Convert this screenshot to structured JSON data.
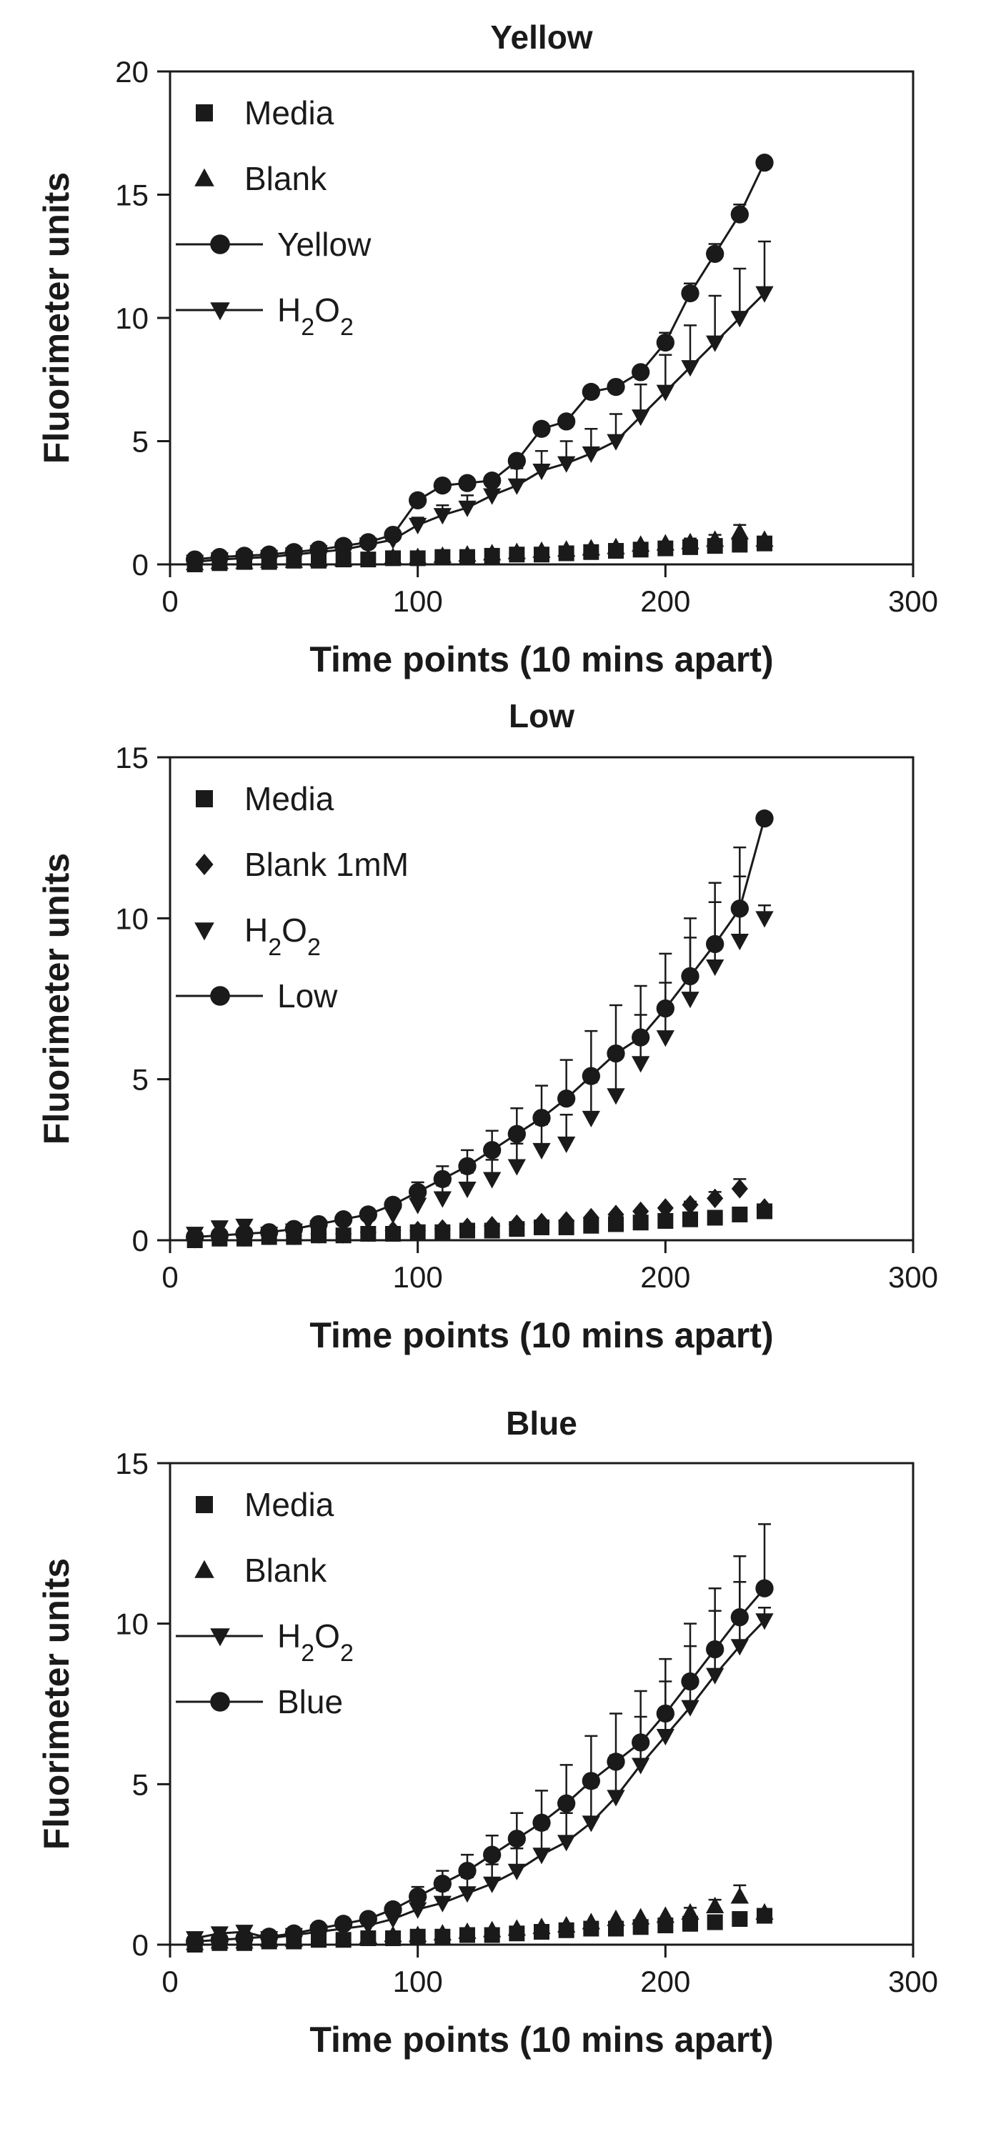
{
  "chart_data": [
    {
      "type": "scatter",
      "title": "Yellow",
      "xlabel": "Time points (10 mins apart)",
      "ylabel": "Fluorimeter units",
      "xlim": [
        0,
        300
      ],
      "ylim": [
        0,
        20
      ],
      "xticks": [
        "0",
        "100",
        "200",
        "300"
      ],
      "yticks": [
        "0",
        "5",
        "10",
        "15",
        "20"
      ],
      "grid": false,
      "legend_position": "top-left",
      "series": [
        {
          "name": "Media",
          "marker": "square",
          "line": false,
          "x": [
            10,
            20,
            30,
            40,
            50,
            60,
            70,
            80,
            90,
            100,
            110,
            120,
            130,
            140,
            150,
            160,
            170,
            180,
            190,
            200,
            210,
            220,
            230,
            240
          ],
          "y": [
            0.0,
            0.05,
            0.1,
            0.1,
            0.15,
            0.15,
            0.2,
            0.2,
            0.25,
            0.25,
            0.3,
            0.3,
            0.35,
            0.4,
            0.4,
            0.45,
            0.5,
            0.55,
            0.6,
            0.65,
            0.7,
            0.75,
            0.8,
            0.85
          ]
        },
        {
          "name": "Blank",
          "marker": "triangle-up",
          "line": false,
          "x": [
            10,
            20,
            30,
            40,
            50,
            60,
            70,
            80,
            90,
            100,
            110,
            120,
            130,
            140,
            150,
            160,
            170,
            180,
            190,
            200,
            210,
            220,
            230,
            240
          ],
          "y": [
            0.05,
            0.1,
            0.1,
            0.15,
            0.15,
            0.2,
            0.2,
            0.25,
            0.3,
            0.3,
            0.35,
            0.4,
            0.45,
            0.5,
            0.55,
            0.6,
            0.65,
            0.7,
            0.8,
            0.85,
            0.9,
            1.0,
            1.3,
            1.0
          ],
          "err": [
            0,
            0,
            0,
            0,
            0,
            0,
            0,
            0,
            0,
            0,
            0,
            0,
            0,
            0,
            0,
            0,
            0,
            0,
            0,
            0,
            0.15,
            0.2,
            0.3,
            0.1
          ]
        },
        {
          "name": "Yellow",
          "marker": "circle",
          "line": true,
          "x": [
            10,
            20,
            30,
            40,
            50,
            60,
            70,
            80,
            90,
            100,
            110,
            120,
            130,
            140,
            150,
            160,
            170,
            180,
            190,
            200,
            210,
            220,
            230,
            240
          ],
          "y": [
            0.2,
            0.3,
            0.35,
            0.4,
            0.5,
            0.6,
            0.75,
            0.9,
            1.2,
            2.6,
            3.2,
            3.3,
            3.4,
            4.2,
            5.5,
            5.8,
            7.0,
            7.2,
            7.8,
            9.0,
            11.0,
            12.6,
            14.2,
            16.3
          ],
          "err": [
            0,
            0,
            0,
            0,
            0,
            0,
            0,
            0,
            0,
            0,
            0,
            0,
            0,
            0,
            0,
            0,
            0,
            0,
            0,
            0.4,
            0.4,
            0.4,
            0.4,
            0
          ]
        },
        {
          "name": "H2O2",
          "label_parts": {
            "base": "H",
            "sub1": "2",
            "mid": "O",
            "sub2": "2"
          },
          "marker": "triangle-down",
          "line": true,
          "x": [
            10,
            20,
            30,
            40,
            50,
            60,
            70,
            80,
            90,
            100,
            110,
            120,
            130,
            140,
            150,
            160,
            170,
            180,
            190,
            200,
            210,
            220,
            230,
            240
          ],
          "y": [
            0.1,
            0.2,
            0.25,
            0.3,
            0.4,
            0.5,
            0.6,
            0.8,
            1.0,
            1.6,
            2.0,
            2.3,
            2.8,
            3.2,
            3.8,
            4.1,
            4.5,
            5.0,
            6.0,
            7.0,
            8.0,
            9.0,
            10.0,
            11.0
          ],
          "err": [
            0,
            0,
            0,
            0,
            0,
            0,
            0,
            0,
            0,
            0.3,
            0.4,
            0.5,
            0.6,
            0.7,
            0.8,
            0.9,
            1.0,
            1.1,
            1.3,
            1.5,
            1.7,
            1.9,
            2.0,
            2.1
          ]
        }
      ]
    },
    {
      "type": "scatter",
      "title": "Low",
      "xlabel": "Time points (10 mins apart)",
      "ylabel": "Fluorimeter units",
      "xlim": [
        0,
        300
      ],
      "ylim": [
        0,
        15
      ],
      "xticks": [
        "0",
        "100",
        "200",
        "300"
      ],
      "yticks": [
        "0",
        "5",
        "10",
        "15"
      ],
      "grid": false,
      "legend_position": "top-left",
      "series": [
        {
          "name": "Media",
          "marker": "square",
          "line": false,
          "x": [
            10,
            20,
            30,
            40,
            50,
            60,
            70,
            80,
            90,
            100,
            110,
            120,
            130,
            140,
            150,
            160,
            170,
            180,
            190,
            200,
            210,
            220,
            230,
            240
          ],
          "y": [
            0.0,
            0.05,
            0.05,
            0.1,
            0.1,
            0.15,
            0.15,
            0.2,
            0.2,
            0.25,
            0.25,
            0.3,
            0.3,
            0.35,
            0.4,
            0.4,
            0.45,
            0.5,
            0.55,
            0.6,
            0.65,
            0.7,
            0.8,
            0.9
          ]
        },
        {
          "name": "Blank 1mM",
          "marker": "diamond",
          "line": false,
          "x": [
            10,
            20,
            30,
            40,
            50,
            60,
            70,
            80,
            90,
            100,
            110,
            120,
            130,
            140,
            150,
            160,
            170,
            180,
            190,
            200,
            210,
            220,
            230,
            240
          ],
          "y": [
            0.05,
            0.1,
            0.1,
            0.15,
            0.15,
            0.2,
            0.2,
            0.25,
            0.3,
            0.3,
            0.35,
            0.4,
            0.45,
            0.5,
            0.55,
            0.6,
            0.7,
            0.8,
            0.9,
            1.0,
            1.1,
            1.3,
            1.6,
            1.0
          ],
          "err": [
            0,
            0,
            0,
            0,
            0,
            0,
            0,
            0,
            0,
            0,
            0,
            0,
            0,
            0,
            0,
            0,
            0,
            0,
            0,
            0,
            0.1,
            0.2,
            0.3,
            0.1
          ]
        },
        {
          "name": "H2O2",
          "label_parts": {
            "base": "H",
            "sub1": "2",
            "mid": "O",
            "sub2": "2"
          },
          "marker": "triangle-down",
          "line": false,
          "x": [
            10,
            20,
            30,
            40,
            50,
            60,
            70,
            80,
            90,
            100,
            110,
            120,
            130,
            140,
            150,
            160,
            170,
            180,
            190,
            200,
            210,
            220,
            230,
            240
          ],
          "y": [
            0.2,
            0.4,
            0.45,
            0.2,
            0.3,
            0.4,
            0.5,
            0.6,
            0.8,
            1.1,
            1.3,
            1.6,
            1.9,
            2.3,
            2.8,
            3.0,
            3.8,
            4.5,
            5.5,
            6.3,
            7.5,
            8.5,
            9.3,
            10.0
          ],
          "err": [
            0,
            0,
            0,
            0,
            0,
            0,
            0,
            0,
            0,
            0.3,
            0.4,
            0.5,
            0.6,
            0.7,
            0.8,
            0.9,
            1.1,
            1.3,
            1.5,
            1.7,
            1.9,
            2.0,
            2.0,
            0.4
          ]
        },
        {
          "name": "Low",
          "marker": "circle",
          "line": true,
          "x": [
            10,
            20,
            30,
            40,
            50,
            60,
            70,
            80,
            90,
            100,
            110,
            120,
            130,
            140,
            150,
            160,
            170,
            180,
            190,
            200,
            210,
            220,
            230,
            240
          ],
          "y": [
            0.1,
            0.15,
            0.2,
            0.25,
            0.35,
            0.5,
            0.65,
            0.8,
            1.1,
            1.5,
            1.9,
            2.3,
            2.8,
            3.3,
            3.8,
            4.4,
            5.1,
            5.8,
            6.3,
            7.2,
            8.2,
            9.2,
            10.3,
            13.1
          ],
          "err": [
            0,
            0,
            0,
            0,
            0,
            0,
            0,
            0,
            0,
            0.3,
            0.4,
            0.5,
            0.6,
            0.8,
            1.0,
            1.2,
            1.4,
            1.5,
            1.6,
            1.7,
            1.8,
            1.9,
            1.9,
            0
          ]
        }
      ]
    },
    {
      "type": "scatter",
      "title": "Blue",
      "xlabel": "Time points (10 mins apart)",
      "ylabel": "Fluorimeter units",
      "xlim": [
        0,
        300
      ],
      "ylim": [
        0,
        15
      ],
      "xticks": [
        "0",
        "100",
        "200",
        "300"
      ],
      "yticks": [
        "0",
        "5",
        "10",
        "15"
      ],
      "grid": false,
      "legend_position": "top-left",
      "series": [
        {
          "name": "Media",
          "marker": "square",
          "line": false,
          "x": [
            10,
            20,
            30,
            40,
            50,
            60,
            70,
            80,
            90,
            100,
            110,
            120,
            130,
            140,
            150,
            160,
            170,
            180,
            190,
            200,
            210,
            220,
            230,
            240
          ],
          "y": [
            0.0,
            0.05,
            0.05,
            0.1,
            0.1,
            0.15,
            0.15,
            0.2,
            0.2,
            0.25,
            0.25,
            0.3,
            0.3,
            0.35,
            0.4,
            0.45,
            0.5,
            0.5,
            0.55,
            0.6,
            0.65,
            0.7,
            0.8,
            0.9
          ]
        },
        {
          "name": "Blank",
          "marker": "triangle-up",
          "line": false,
          "x": [
            10,
            20,
            30,
            40,
            50,
            60,
            70,
            80,
            90,
            100,
            110,
            120,
            130,
            140,
            150,
            160,
            170,
            180,
            190,
            200,
            210,
            220,
            230,
            240
          ],
          "y": [
            0.05,
            0.1,
            0.1,
            0.15,
            0.15,
            0.2,
            0.2,
            0.25,
            0.3,
            0.3,
            0.35,
            0.4,
            0.45,
            0.5,
            0.55,
            0.6,
            0.7,
            0.8,
            0.85,
            0.9,
            1.0,
            1.2,
            1.5,
            1.0
          ],
          "err": [
            0,
            0,
            0,
            0,
            0,
            0,
            0,
            0,
            0,
            0,
            0,
            0,
            0,
            0,
            0,
            0,
            0,
            0,
            0,
            0,
            0.15,
            0.2,
            0.35,
            0.1
          ]
        },
        {
          "name": "H2O2",
          "label_parts": {
            "base": "H",
            "sub1": "2",
            "mid": "O",
            "sub2": "2"
          },
          "marker": "triangle-down",
          "line": true,
          "x": [
            10,
            20,
            30,
            40,
            50,
            60,
            70,
            80,
            90,
            100,
            110,
            120,
            130,
            140,
            150,
            160,
            170,
            180,
            190,
            200,
            210,
            220,
            230,
            240
          ],
          "y": [
            0.2,
            0.35,
            0.4,
            0.2,
            0.3,
            0.4,
            0.5,
            0.6,
            0.8,
            1.1,
            1.3,
            1.6,
            1.9,
            2.3,
            2.8,
            3.2,
            3.8,
            4.6,
            5.6,
            6.5,
            7.4,
            8.4,
            9.3,
            10.1
          ],
          "err": [
            0,
            0,
            0,
            0,
            0,
            0,
            0,
            0,
            0,
            0.3,
            0.4,
            0.5,
            0.6,
            0.7,
            0.8,
            0.9,
            1.1,
            1.3,
            1.5,
            1.7,
            1.9,
            2.0,
            2.0,
            0.4
          ]
        },
        {
          "name": "Blue",
          "marker": "circle",
          "line": true,
          "x": [
            10,
            20,
            30,
            40,
            50,
            60,
            70,
            80,
            90,
            100,
            110,
            120,
            130,
            140,
            150,
            160,
            170,
            180,
            190,
            200,
            210,
            220,
            230,
            240
          ],
          "y": [
            0.1,
            0.15,
            0.2,
            0.25,
            0.35,
            0.5,
            0.65,
            0.8,
            1.1,
            1.5,
            1.9,
            2.3,
            2.8,
            3.3,
            3.8,
            4.4,
            5.1,
            5.7,
            6.3,
            7.2,
            8.2,
            9.2,
            10.2,
            11.1
          ],
          "err": [
            0,
            0,
            0,
            0,
            0,
            0,
            0,
            0,
            0,
            0.3,
            0.4,
            0.5,
            0.6,
            0.8,
            1.0,
            1.2,
            1.4,
            1.5,
            1.6,
            1.7,
            1.8,
            1.9,
            1.9,
            2.0
          ]
        }
      ]
    }
  ]
}
